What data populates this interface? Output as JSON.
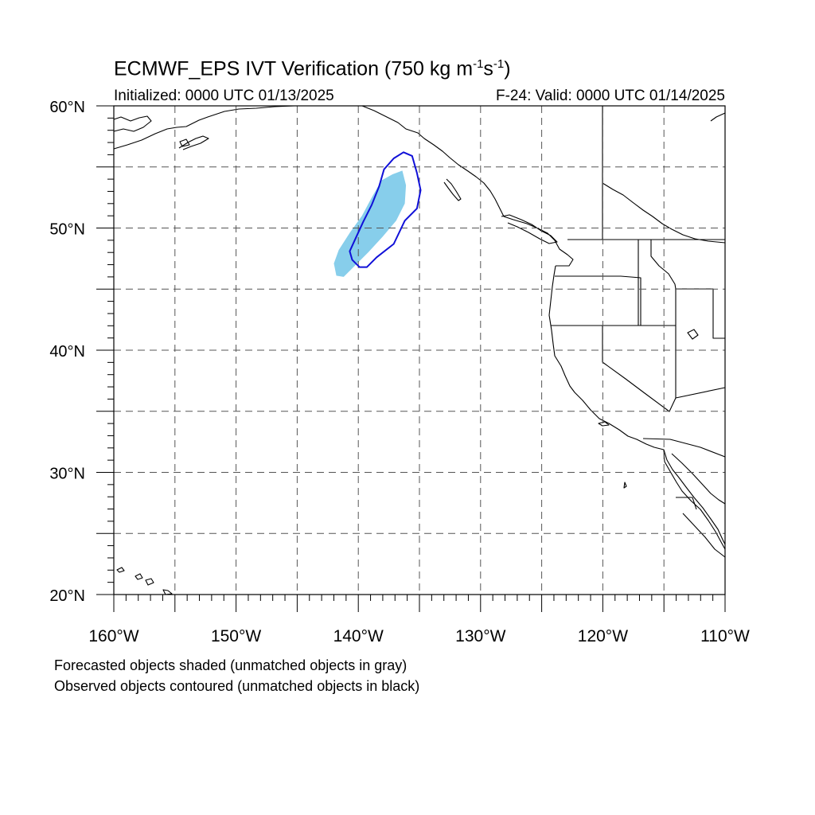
{
  "title": {
    "prefix": "ECMWF_EPS IVT Verification (750 kg m",
    "exp1": "-1",
    "mid": "s",
    "exp2": "-1",
    "suffix": ")"
  },
  "subtitle": {
    "initialized": "Initialized: 0000 UTC 01/13/2025",
    "valid": "F-24: Valid: 0000 UTC 01/14/2025"
  },
  "map": {
    "lon_range": [
      -160,
      -110
    ],
    "lat_range": [
      20,
      60
    ],
    "grid_interval_deg": 5,
    "lat_labels": [
      {
        "lat": 60,
        "text": "60°N"
      },
      {
        "lat": 50,
        "text": "50°N"
      },
      {
        "lat": 40,
        "text": "40°N"
      },
      {
        "lat": 30,
        "text": "30°N"
      },
      {
        "lat": 20,
        "text": "20°N"
      }
    ],
    "lon_labels": [
      {
        "lon": -160,
        "text": "160°W"
      },
      {
        "lon": -150,
        "text": "150°W"
      },
      {
        "lon": -140,
        "text": "140°W"
      },
      {
        "lon": -130,
        "text": "130°W"
      },
      {
        "lon": -120,
        "text": "120°W"
      },
      {
        "lon": -110,
        "text": "110°W"
      }
    ],
    "colors": {
      "forecast_fill": "#87ceeb",
      "observed_contour": "#1010d8",
      "coastline": "#000000",
      "grid": "#555555"
    },
    "forecast_object": [
      [
        -141.8,
        46.1
      ],
      [
        -142.0,
        47.1
      ],
      [
        -141.6,
        48.2
      ],
      [
        -140.7,
        49.6
      ],
      [
        -139.7,
        51.0
      ],
      [
        -138.9,
        52.5
      ],
      [
        -138.1,
        53.9
      ],
      [
        -137.2,
        54.4
      ],
      [
        -136.4,
        54.7
      ],
      [
        -136.1,
        53.5
      ],
      [
        -136.2,
        52.0
      ],
      [
        -136.9,
        50.6
      ],
      [
        -138.0,
        49.3
      ],
      [
        -139.2,
        48.0
      ],
      [
        -140.4,
        46.8
      ],
      [
        -141.2,
        46.0
      ]
    ],
    "observed_object": [
      [
        -139.9,
        46.8
      ],
      [
        -140.5,
        47.4
      ],
      [
        -140.7,
        48.1
      ],
      [
        -140.2,
        49.2
      ],
      [
        -139.6,
        50.5
      ],
      [
        -138.9,
        51.9
      ],
      [
        -138.3,
        53.4
      ],
      [
        -137.9,
        54.8
      ],
      [
        -137.1,
        55.7
      ],
      [
        -136.3,
        56.2
      ],
      [
        -135.6,
        55.9
      ],
      [
        -135.2,
        54.5
      ],
      [
        -134.9,
        53.1
      ],
      [
        -135.2,
        51.6
      ],
      [
        -136.2,
        50.6
      ],
      [
        -137.1,
        48.7
      ],
      [
        -138.5,
        47.6
      ],
      [
        -139.3,
        46.8
      ]
    ]
  },
  "notes": {
    "forecast": "Forecasted objects shaded (unmatched objects in gray)",
    "observed": "Observed objects contoured (unmatched objects in black)"
  }
}
